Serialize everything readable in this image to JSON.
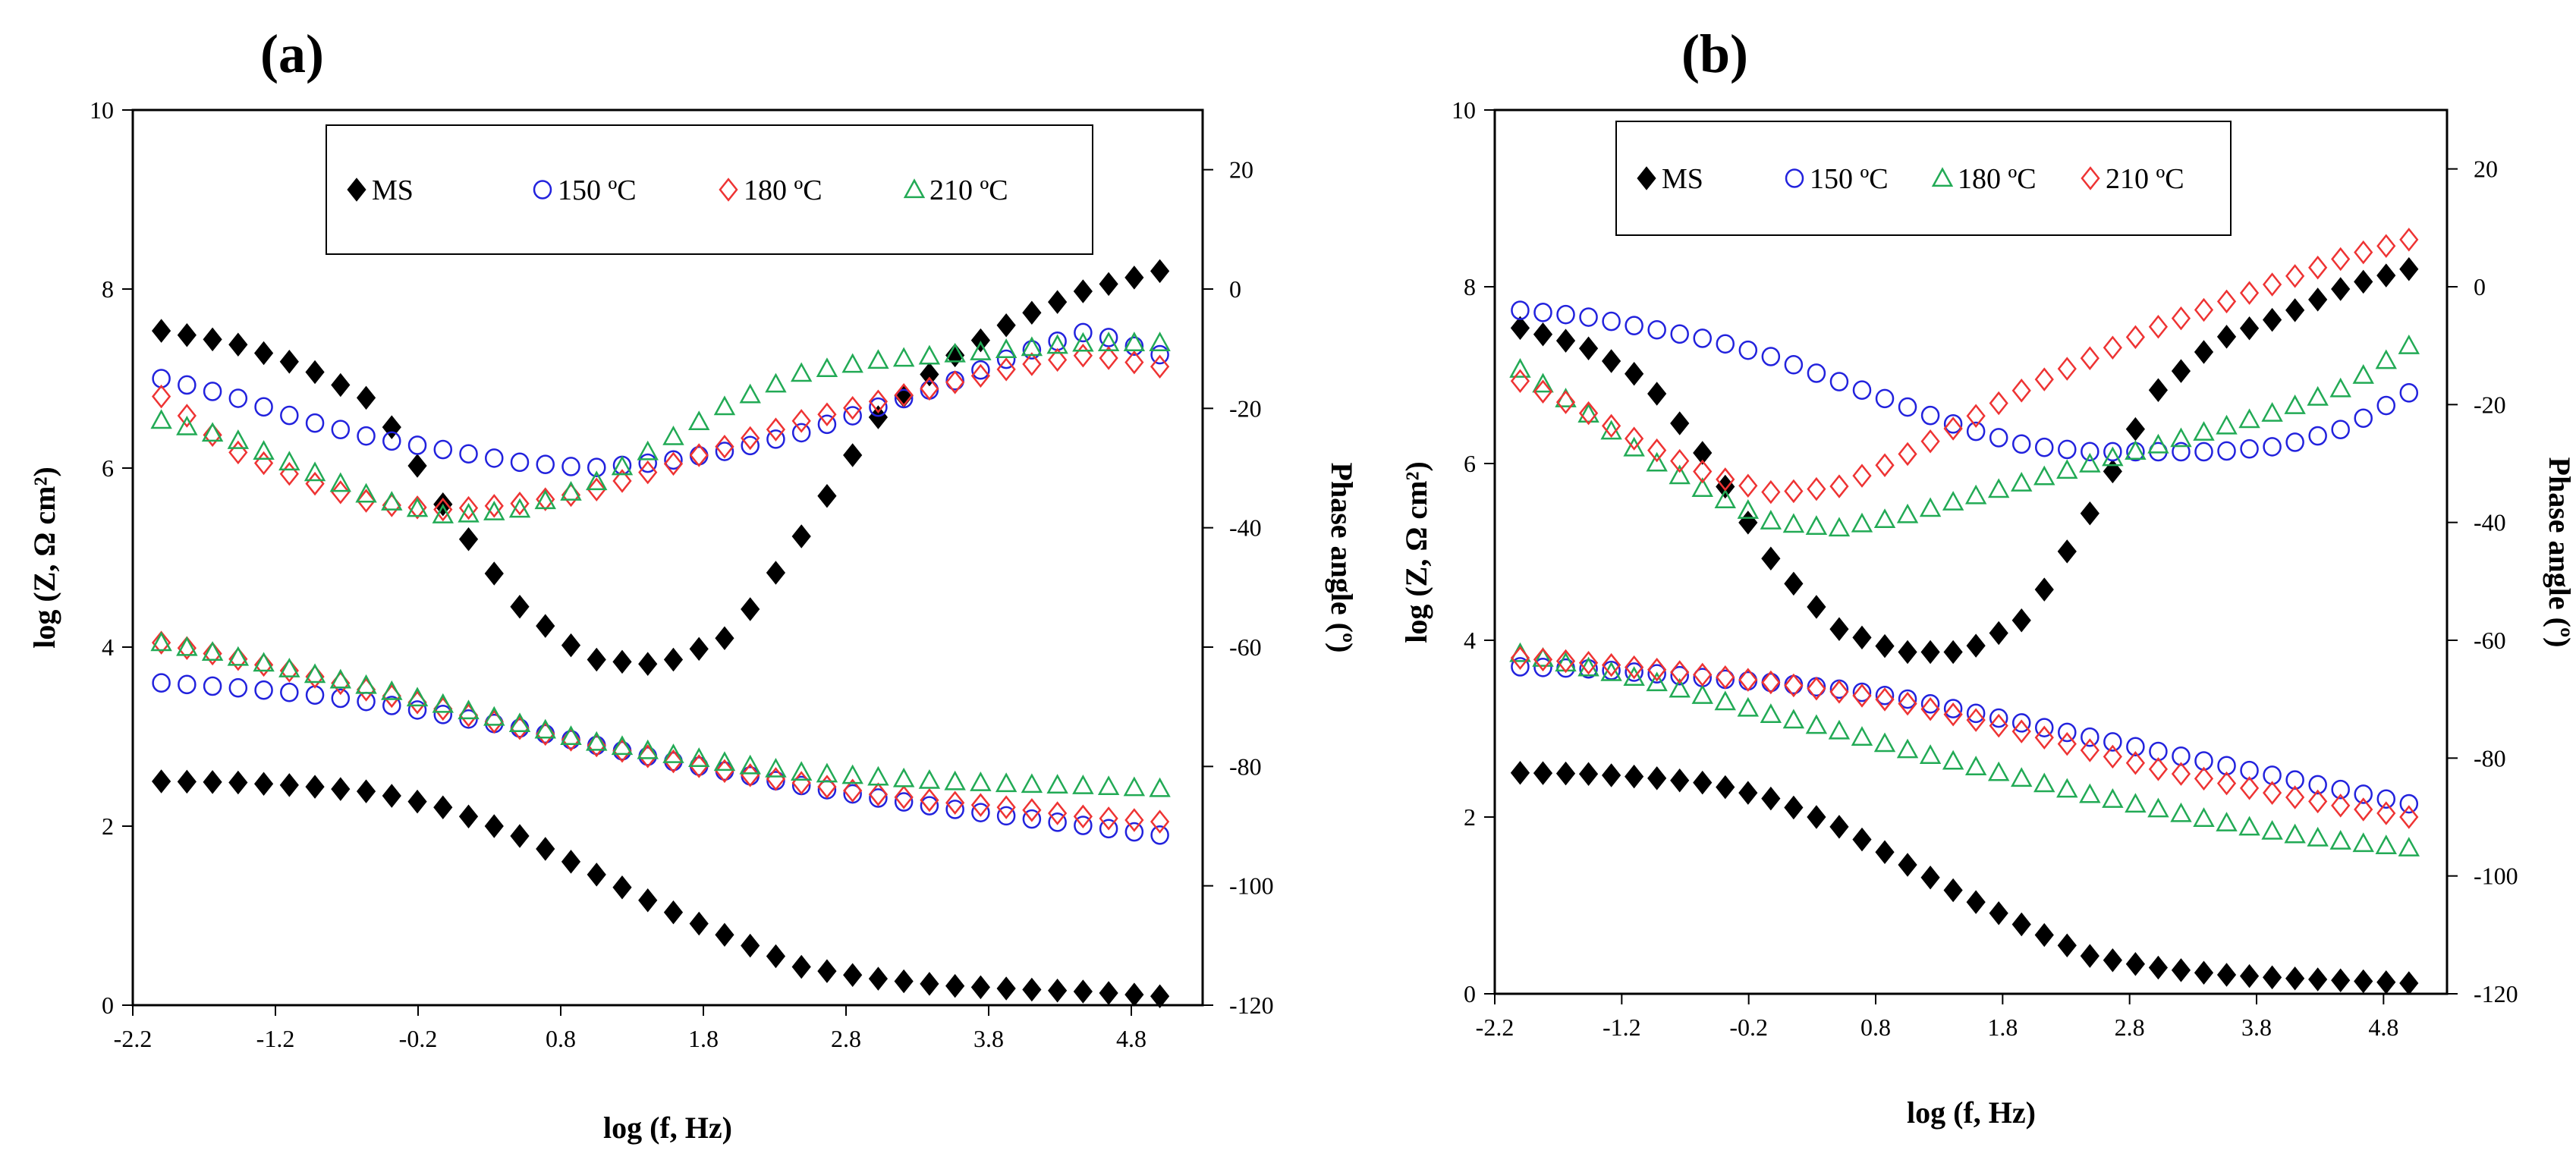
{
  "chart_data": [
    {
      "type": "scatter",
      "panel_label": "(a)",
      "xlabel": "log (f, Hz)",
      "ylabel": "log (Z, Ω cm²)",
      "y2label": "Phase angle (º)",
      "xlim": [
        -2.2,
        5.3
      ],
      "ylim": [
        0,
        10
      ],
      "y2lim": [
        -120,
        30
      ],
      "xticks": [
        "-2.2",
        "-1.2",
        "-0.2",
        "0.8",
        "1.8",
        "2.8",
        "3.8",
        "4.8"
      ],
      "yticks": [
        "0",
        "2",
        "4",
        "6",
        "8",
        "10"
      ],
      "y2ticks": [
        "-120",
        "-100",
        "-80",
        "-60",
        "-40",
        "-20",
        "0",
        "20"
      ],
      "series": [
        {
          "name": "MS",
          "marker": "diamond-filled",
          "color": "#000000",
          "x": [
            -2,
            -1.5,
            -1,
            -0.5,
            0,
            0.5,
            1,
            1.5,
            2,
            2.5,
            3,
            3.5,
            4,
            4.5,
            5
          ],
          "logZ": [
            2.5,
            2.49,
            2.45,
            2.38,
            2.2,
            1.9,
            1.5,
            1.1,
            0.75,
            0.42,
            0.3,
            0.22,
            0.18,
            0.15,
            0.1
          ],
          "phase": [
            -7,
            -9,
            -13,
            -19,
            -37,
            -53,
            -62,
            -63,
            -58,
            -41,
            -22,
            -12,
            -5,
            0,
            3
          ]
        },
        {
          "name": "150 ºC",
          "marker": "circle-open",
          "color": "#2222dd",
          "x": [
            -2,
            -1.5,
            -1,
            -0.5,
            0,
            0.5,
            1,
            1.5,
            2,
            2.5,
            3,
            3.5,
            4,
            4.5,
            5
          ],
          "logZ": [
            3.6,
            3.55,
            3.48,
            3.38,
            3.24,
            3.1,
            2.92,
            2.75,
            2.6,
            2.45,
            2.32,
            2.2,
            2.1,
            2.0,
            1.9
          ],
          "phase": [
            -15,
            -18,
            -22,
            -25,
            -27,
            -29,
            -30,
            -29,
            -27,
            -24,
            -20,
            -16,
            -11,
            -7,
            -11
          ]
        },
        {
          "name": "180 ºC",
          "marker": "diamond-open",
          "color": "#ee3333",
          "x": [
            -2,
            -1.5,
            -1,
            -0.5,
            0,
            0.5,
            1,
            1.5,
            2,
            2.5,
            3,
            3.5,
            4,
            4.5,
            5
          ],
          "logZ": [
            4.05,
            3.88,
            3.7,
            3.5,
            3.3,
            3.1,
            2.92,
            2.75,
            2.6,
            2.48,
            2.36,
            2.27,
            2.2,
            2.1,
            2.05
          ],
          "phase": [
            -18,
            -27,
            -32,
            -36,
            -37,
            -36,
            -34,
            -30,
            -26,
            -22,
            -19,
            -16,
            -13,
            -11,
            -13
          ]
        },
        {
          "name": "210 ºC",
          "marker": "triangle-open",
          "color": "#22aa55",
          "x": [
            -2,
            -1.5,
            -1,
            -0.5,
            0,
            0.5,
            1,
            1.5,
            2,
            2.5,
            3,
            3.5,
            4,
            4.5,
            5
          ],
          "logZ": [
            4.05,
            3.9,
            3.72,
            3.55,
            3.35,
            3.15,
            2.95,
            2.82,
            2.7,
            2.6,
            2.55,
            2.5,
            2.47,
            2.45,
            2.42
          ],
          "phase": [
            -22,
            -25,
            -30,
            -35,
            -38,
            -37,
            -33,
            -26,
            -19,
            -14,
            -12,
            -11,
            -10,
            -9,
            -9
          ]
        }
      ]
    },
    {
      "type": "scatter",
      "panel_label": "(b)",
      "xlabel": "log (f, Hz)",
      "ylabel": "log (Z, Ω cm²)",
      "y2label": "Phase angle (º)",
      "xlim": [
        -2.2,
        5.3
      ],
      "ylim": [
        0,
        10
      ],
      "y2lim": [
        -120,
        30
      ],
      "xticks": [
        "-2.2",
        "-1.2",
        "-0.2",
        "0.8",
        "1.8",
        "2.8",
        "3.8",
        "4.8"
      ],
      "yticks": [
        "0",
        "2",
        "4",
        "6",
        "8",
        "10"
      ],
      "y2ticks": [
        "-120",
        "-100",
        "-80",
        "-60",
        "-40",
        "-20",
        "0",
        "20"
      ],
      "series": [
        {
          "name": "MS",
          "marker": "diamond-filled",
          "color": "#000000",
          "x": [
            -2,
            -1.5,
            -1,
            -0.5,
            0,
            0.5,
            1,
            1.5,
            2,
            2.5,
            3,
            3.5,
            4,
            4.5,
            5
          ],
          "logZ": [
            2.5,
            2.49,
            2.45,
            2.38,
            2.2,
            1.9,
            1.5,
            1.1,
            0.75,
            0.42,
            0.3,
            0.22,
            0.18,
            0.15,
            0.12
          ],
          "phase": [
            -7,
            -10,
            -16,
            -30,
            -47,
            -58,
            -62,
            -62,
            -56,
            -38,
            -18,
            -9,
            -5,
            0,
            3
          ]
        },
        {
          "name": "150 ºC",
          "marker": "circle-open",
          "color": "#2222dd",
          "x": [
            -2,
            -1.5,
            -1,
            -0.5,
            0,
            0.5,
            1,
            1.5,
            2,
            2.5,
            3,
            3.5,
            4,
            4.5,
            5
          ],
          "logZ": [
            3.7,
            3.68,
            3.63,
            3.57,
            3.52,
            3.45,
            3.35,
            3.2,
            3.05,
            2.9,
            2.75,
            2.6,
            2.45,
            2.3,
            2.15
          ],
          "phase": [
            -4,
            -5,
            -7,
            -9,
            -12,
            -16,
            -20,
            -24,
            -27,
            -28,
            -28,
            -28,
            -27,
            -24,
            -18
          ]
        },
        {
          "name": "180 ºC",
          "marker": "triangle-open",
          "color": "#22aa55",
          "x": [
            -2,
            -1.5,
            -1,
            -0.5,
            0,
            0.5,
            1,
            1.5,
            2,
            2.5,
            3,
            3.5,
            4,
            4.5,
            5
          ],
          "logZ": [
            3.85,
            3.7,
            3.55,
            3.35,
            3.15,
            2.98,
            2.78,
            2.6,
            2.42,
            2.25,
            2.1,
            1.95,
            1.82,
            1.72,
            1.65
          ],
          "phase": [
            -14,
            -21,
            -29,
            -35,
            -40,
            -41,
            -39,
            -36,
            -33,
            -30,
            -27,
            -24,
            -21,
            -17,
            -10
          ]
        },
        {
          "name": "210 ºC",
          "marker": "diamond-open",
          "color": "#ee3333",
          "x": [
            -2,
            -1.5,
            -1,
            -0.5,
            0,
            0.5,
            1,
            1.5,
            2,
            2.5,
            3,
            3.5,
            4,
            4.5,
            5
          ],
          "logZ": [
            3.8,
            3.75,
            3.68,
            3.6,
            3.52,
            3.42,
            3.3,
            3.13,
            2.95,
            2.75,
            2.55,
            2.4,
            2.25,
            2.12,
            2.0
          ],
          "phase": [
            -16,
            -21,
            -27,
            -32,
            -35,
            -34,
            -29,
            -23,
            -17,
            -12,
            -7,
            -3,
            1,
            5,
            8
          ]
        }
      ]
    }
  ]
}
